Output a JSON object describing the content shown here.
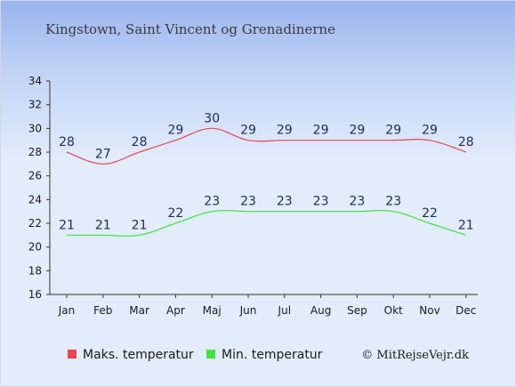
{
  "chart_data": {
    "type": "line",
    "title": "Kingstown, Saint Vincent og Grenadinerne",
    "categories": [
      "Jan",
      "Feb",
      "Mar",
      "Apr",
      "Maj",
      "Jun",
      "Jul",
      "Aug",
      "Sep",
      "Okt",
      "Nov",
      "Dec"
    ],
    "ylim": [
      16,
      34
    ],
    "yticks": [
      16,
      18,
      20,
      22,
      24,
      26,
      28,
      30,
      32,
      34
    ],
    "series": [
      {
        "name": "Maks. temperatur",
        "color": "#e8474d",
        "values": [
          28,
          27,
          28,
          29,
          30,
          29,
          29,
          29,
          29,
          29,
          29,
          28
        ]
      },
      {
        "name": "Min. temperatur",
        "color": "#3ee63e",
        "values": [
          21,
          21,
          21,
          22,
          23,
          23,
          23,
          23,
          23,
          23,
          22,
          21
        ]
      }
    ],
    "legend_position": "bottom",
    "grid": false
  },
  "credit": "© MitRejseVejr.dk"
}
